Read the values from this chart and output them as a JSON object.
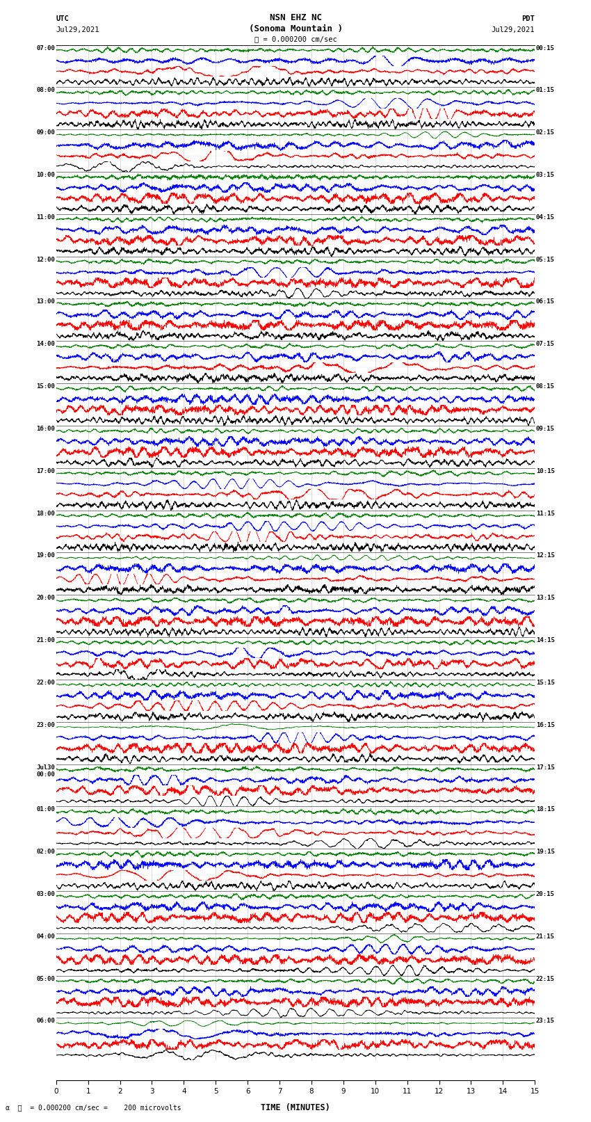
{
  "title_line1": "NSN EHZ NC",
  "title_line2": "(Sonoma Mountain )",
  "scale_label": "= 0.000200 cm/sec",
  "footer_text": "= 0.000200 cm/sec =    200 microvolts",
  "left_label": "UTC",
  "left_date": "Jul29,2021",
  "right_label": "PDT",
  "right_date": "Jul29,2021",
  "xlabel": "TIME (MINUTES)",
  "x_ticks": [
    0,
    1,
    2,
    3,
    4,
    5,
    6,
    7,
    8,
    9,
    10,
    11,
    12,
    13,
    14,
    15
  ],
  "utc_times_labeled": [
    "07:00",
    "08:00",
    "09:00",
    "10:00",
    "11:00",
    "12:00",
    "13:00",
    "14:00",
    "15:00",
    "16:00",
    "17:00",
    "18:00",
    "19:00",
    "20:00",
    "21:00",
    "22:00",
    "23:00",
    "Jul30\n00:00",
    "01:00",
    "02:00",
    "03:00",
    "04:00",
    "05:00",
    "06:00"
  ],
  "pdt_times_labeled": [
    "00:15",
    "01:15",
    "02:15",
    "03:15",
    "04:15",
    "05:15",
    "06:15",
    "07:15",
    "08:15",
    "09:15",
    "10:15",
    "11:15",
    "12:15",
    "13:15",
    "14:15",
    "15:15",
    "16:15",
    "17:15",
    "18:15",
    "19:15",
    "20:15",
    "21:15",
    "22:15",
    "23:15"
  ],
  "colors": [
    "black",
    "red",
    "blue",
    "green"
  ],
  "bg_color": "#ffffff",
  "num_rows": 24,
  "traces_per_row": 4,
  "x_min": 0,
  "x_max": 15,
  "n_points": 3000,
  "seed": 12345,
  "amplitudes": [
    1.2,
    1.5,
    1.3,
    0.8
  ],
  "row_heights_vary": true
}
